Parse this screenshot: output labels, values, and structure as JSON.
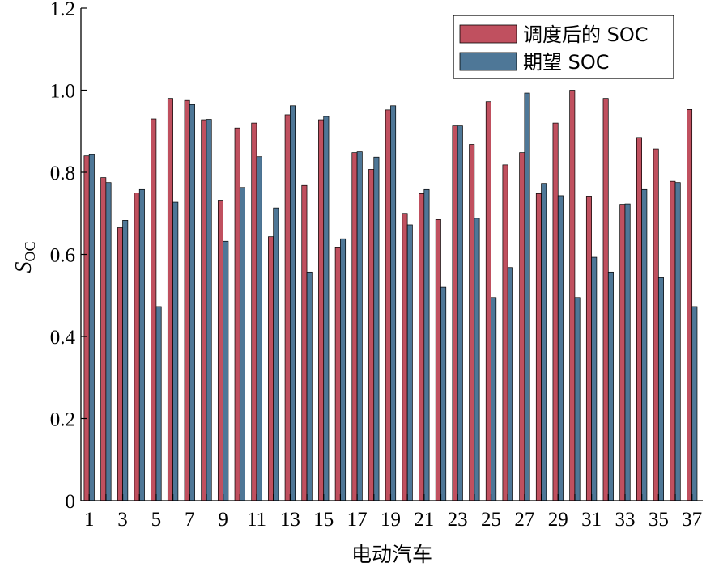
{
  "chart_data": {
    "type": "bar",
    "xlabel": "电动汽车",
    "ylabel": {
      "main": "S",
      "sub": "OC"
    },
    "ylim": [
      0,
      1.2
    ],
    "yticks": [
      "0",
      "0.2",
      "0.4",
      "0.6",
      "0.8",
      "1.0",
      "1.2"
    ],
    "yticks_values": [
      0,
      0.2,
      0.4,
      0.6,
      0.8,
      1.0,
      1.2
    ],
    "categories": [
      "1",
      "2",
      "3",
      "4",
      "5",
      "6",
      "7",
      "8",
      "9",
      "10",
      "11",
      "12",
      "13",
      "14",
      "15",
      "16",
      "17",
      "18",
      "19",
      "20",
      "21",
      "22",
      "23",
      "24",
      "25",
      "26",
      "27",
      "28",
      "29",
      "30",
      "31",
      "32",
      "33",
      "34",
      "35",
      "36",
      "37"
    ],
    "xtick_labels_shown": [
      "1",
      "3",
      "5",
      "7",
      "9",
      "11",
      "13",
      "15",
      "17",
      "19",
      "21",
      "23",
      "25",
      "27",
      "29",
      "31",
      "33",
      "35",
      "37"
    ],
    "legend_position": "top-right",
    "grid": false,
    "series": [
      {
        "name": "调度后的 SOC",
        "color": "#c0505f",
        "values": [
          0.84,
          0.787,
          0.665,
          0.75,
          0.93,
          0.98,
          0.975,
          0.928,
          0.732,
          0.908,
          0.92,
          0.643,
          0.94,
          0.768,
          0.928,
          0.618,
          0.848,
          0.807,
          0.952,
          0.7,
          0.748,
          0.685,
          0.913,
          0.868,
          0.972,
          0.818,
          0.848,
          0.748,
          0.92,
          1.0,
          0.742,
          0.98,
          0.722,
          0.885,
          0.857,
          0.778,
          0.953
        ]
      },
      {
        "name": "期望 SOC",
        "color": "#4e7797",
        "values": [
          0.843,
          0.775,
          0.683,
          0.758,
          0.473,
          0.727,
          0.965,
          0.929,
          0.632,
          0.763,
          0.838,
          0.713,
          0.962,
          0.557,
          0.936,
          0.638,
          0.85,
          0.837,
          0.962,
          0.672,
          0.758,
          0.52,
          0.913,
          0.688,
          0.495,
          0.568,
          0.993,
          0.773,
          0.743,
          0.495,
          0.593,
          0.557,
          0.723,
          0.758,
          0.543,
          0.775,
          0.473
        ]
      }
    ]
  }
}
